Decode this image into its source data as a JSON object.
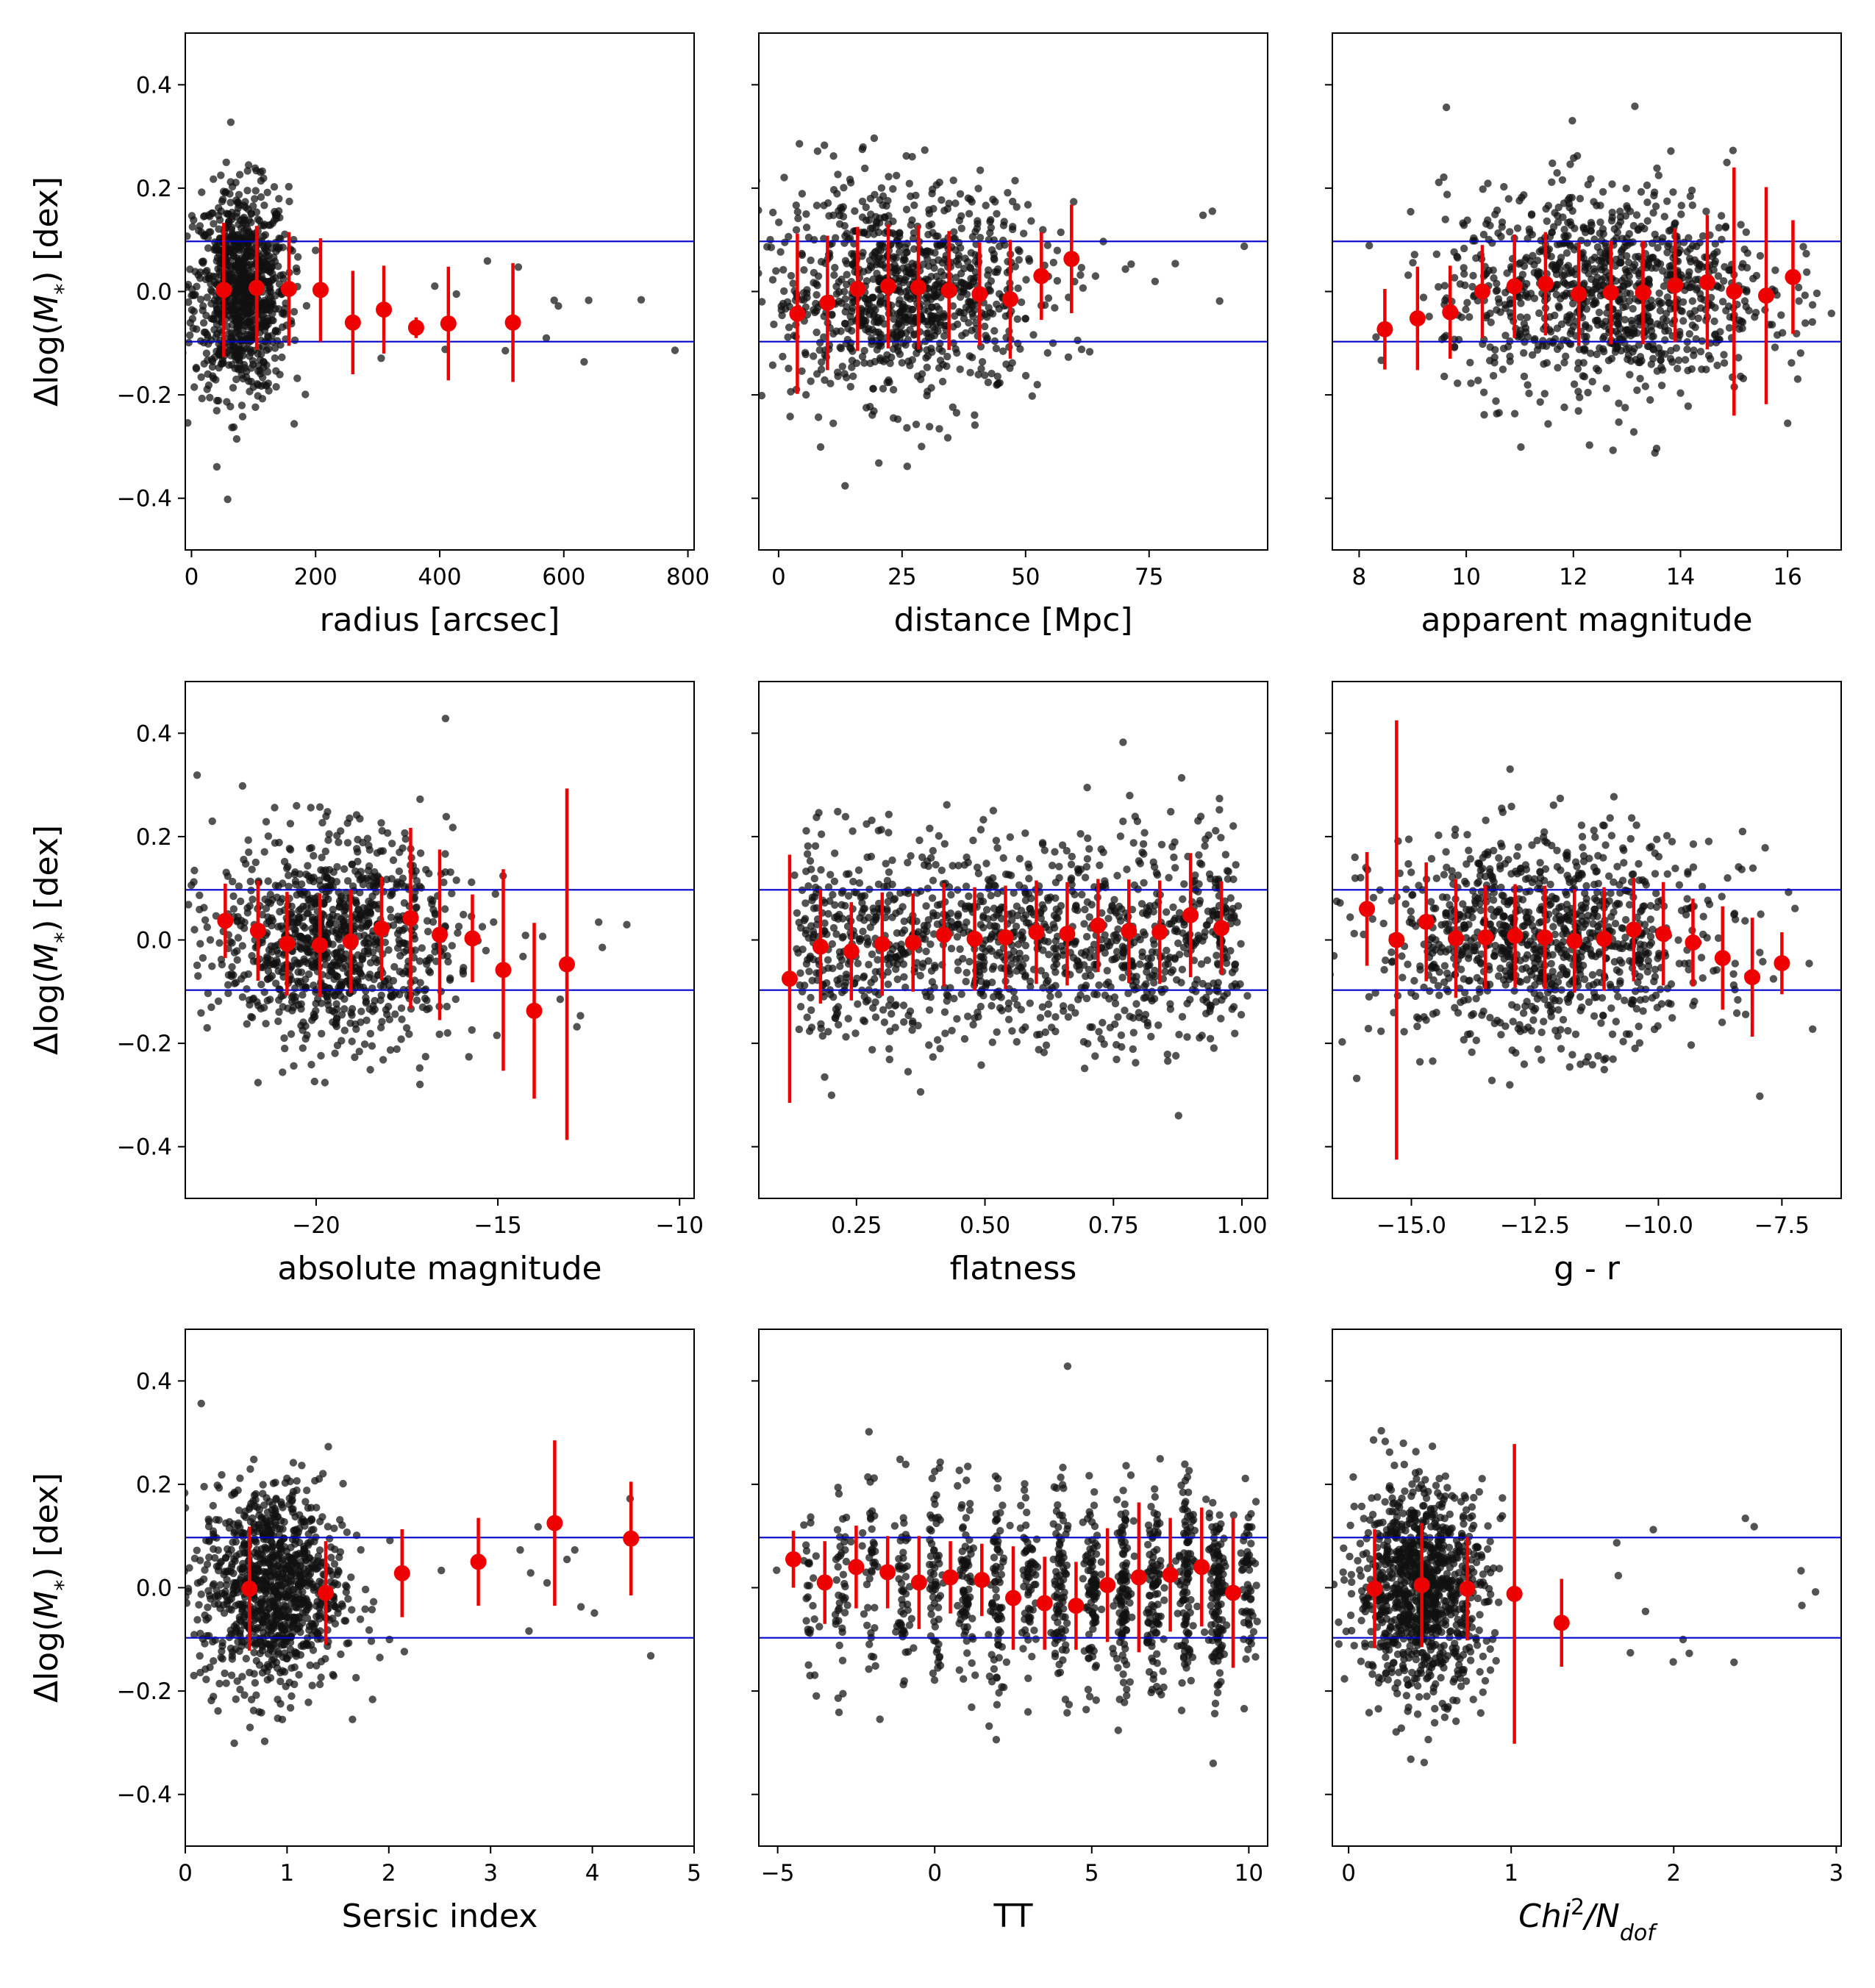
{
  "figure": {
    "shared_ylabel": "Δlog(M*) [dex]",
    "yticks": [
      "0.4",
      "0.2",
      "0.0",
      "−0.2",
      "−0.4"
    ]
  },
  "chart_data": [
    {
      "type": "scatter",
      "xlabel": "radius [arcsec]",
      "ylabel": "Δlog(M*) [dex]",
      "xlim": [
        -10,
        810
      ],
      "ylim": [
        -0.5,
        0.5
      ],
      "xticks": [
        0,
        200,
        400,
        600,
        800
      ],
      "xtick_labels": [
        "0",
        "200",
        "400",
        "600",
        "800"
      ],
      "cloud": {
        "center": 80,
        "spread": 38,
        "n": 900,
        "ysd": 0.1,
        "tail_max": 790
      },
      "hlines": [
        0.097,
        -0.097
      ],
      "binned": {
        "x": [
          52,
          105,
          157,
          208,
          260,
          310,
          362,
          414,
          518
        ],
        "y": [
          0.003,
          0.007,
          0.005,
          0.003,
          -0.06,
          -0.035,
          -0.07,
          -0.062,
          -0.06
        ],
        "err": [
          0.13,
          0.12,
          0.11,
          0.1,
          0.1,
          0.085,
          0.02,
          0.11,
          0.115
        ]
      }
    },
    {
      "type": "scatter",
      "xlabel": "distance [Mpc]",
      "ylabel": "Δlog(M*) [dex]",
      "xlim": [
        -4,
        99
      ],
      "ylim": [
        -0.5,
        0.5
      ],
      "xticks": [
        0,
        25,
        50,
        75
      ],
      "xtick_labels": [
        "0",
        "25",
        "50",
        "75"
      ],
      "cloud": {
        "center": 25,
        "spread": 14,
        "n": 1000,
        "ysd": 0.1,
        "tail_max": 95
      },
      "hlines": [
        0.097,
        -0.097
      ],
      "binned": {
        "x": [
          3.8,
          9.9,
          16,
          22.2,
          28.3,
          34.5,
          40.7,
          46.9,
          53.2,
          59.3
        ],
        "y": [
          -0.043,
          -0.022,
          0.005,
          0.01,
          0.008,
          0.002,
          -0.005,
          -0.015,
          0.03,
          0.063
        ],
        "err": [
          0.155,
          0.13,
          0.12,
          0.12,
          0.12,
          0.115,
          0.1,
          0.115,
          0.085,
          0.105
        ]
      }
    },
    {
      "type": "scatter",
      "xlabel": "apparent magnitude",
      "ylabel": "Δlog(M*) [dex]",
      "xlim": [
        7.5,
        17
      ],
      "ylim": [
        -0.5,
        0.5
      ],
      "xticks": [
        8,
        10,
        12,
        14,
        16
      ],
      "xtick_labels": [
        "8",
        "10",
        "12",
        "14",
        "16"
      ],
      "cloud": {
        "center": 12.6,
        "spread": 1.5,
        "n": 1000,
        "ysd": 0.1,
        "tail_max": 16.6
      },
      "hlines": [
        0.097,
        -0.097
      ],
      "binned": {
        "x": [
          8.48,
          9.09,
          9.7,
          10.3,
          10.9,
          11.48,
          12.1,
          12.7,
          13.3,
          13.9,
          14.5,
          15.0,
          15.6,
          16.1
        ],
        "y": [
          -0.073,
          -0.052,
          -0.04,
          0.0,
          0.01,
          0.015,
          -0.005,
          -0.002,
          -0.002,
          0.012,
          0.018,
          0.0,
          -0.008,
          0.028
        ],
        "err": [
          0.078,
          0.1,
          0.09,
          0.09,
          0.1,
          0.1,
          0.1,
          0.1,
          0.1,
          0.11,
          0.13,
          0.24,
          0.21,
          0.11
        ]
      }
    },
    {
      "type": "scatter",
      "xlabel": "absolute magnitude",
      "ylabel": "Δlog(M*) [dex]",
      "xlim": [
        -23.6,
        -9.6
      ],
      "ylim": [
        -0.5,
        0.5
      ],
      "xticks": [
        -20,
        -15,
        -10
      ],
      "xtick_labels": [
        "−20",
        "−15",
        "−10"
      ],
      "cloud": {
        "center": -19.5,
        "spread": 1.6,
        "n": 1000,
        "ysd": 0.1,
        "tail_max": -10.3
      },
      "hlines": [
        0.097,
        -0.097
      ],
      "binned": {
        "x": [
          -22.5,
          -21.6,
          -20.8,
          -19.9,
          -19.05,
          -18.2,
          -17.4,
          -16.6,
          -15.7,
          -14.85,
          -14.0,
          -13.1
        ],
        "y": [
          0.037,
          0.018,
          -0.007,
          -0.01,
          -0.003,
          0.022,
          0.042,
          0.01,
          0.003,
          -0.058,
          -0.137,
          -0.047
        ],
        "err": [
          0.072,
          0.097,
          0.1,
          0.1,
          0.1,
          0.1,
          0.175,
          0.165,
          0.085,
          0.195,
          0.17,
          0.34
        ]
      }
    },
    {
      "type": "scatter",
      "xlabel": "flatness",
      "ylabel": "Δlog(M*) [dex]",
      "xlim": [
        0.06,
        1.05
      ],
      "ylim": [
        -0.5,
        0.5
      ],
      "xticks": [
        0.25,
        0.5,
        0.75,
        1.0
      ],
      "xtick_labels": [
        "0.25",
        "0.50",
        "0.75",
        "1.00"
      ],
      "cloud": {
        "center": 0.55,
        "spread": 0.24,
        "n": 1200,
        "ysd": 0.1,
        "tail_max": 1.0,
        "uniform": [
          0.14,
          0.99
        ]
      },
      "hlines": [
        0.097,
        -0.097
      ],
      "binned": {
        "x": [
          0.12,
          0.18,
          0.24,
          0.3,
          0.36,
          0.42,
          0.48,
          0.54,
          0.6,
          0.66,
          0.72,
          0.78,
          0.84,
          0.9,
          0.96
        ],
        "y": [
          -0.075,
          -0.013,
          -0.022,
          -0.008,
          -0.005,
          0.01,
          0.002,
          0.005,
          0.015,
          0.012,
          0.028,
          0.017,
          0.015,
          0.048,
          0.023
        ],
        "err": [
          0.24,
          0.11,
          0.095,
          0.1,
          0.095,
          0.1,
          0.1,
          0.1,
          0.1,
          0.1,
          0.09,
          0.1,
          0.1,
          0.12,
          0.09
        ]
      }
    },
    {
      "type": "scatter",
      "xlabel": "g - r",
      "ylabel": "Δlog(M*) [dex]",
      "xlim": [
        -16.6,
        -6.3
      ],
      "ylim": [
        -0.5,
        0.5
      ],
      "xticks": [
        -15,
        -12.5,
        -10,
        -7.5
      ],
      "xtick_labels": [
        "−15.0",
        "−12.5",
        "−10.0",
        "−7.5"
      ],
      "cloud": {
        "center": -12.3,
        "spread": 1.7,
        "n": 1000,
        "ysd": 0.1,
        "tail_max": -6.6
      },
      "hlines": [
        0.097,
        -0.097
      ],
      "binned": {
        "x": [
          -15.9,
          -15.3,
          -14.7,
          -14.1,
          -13.5,
          -12.9,
          -12.3,
          -11.7,
          -11.1,
          -10.5,
          -9.9,
          -9.3,
          -8.7,
          -8.1,
          -7.5
        ],
        "y": [
          0.06,
          0.0,
          0.035,
          0.003,
          0.005,
          0.008,
          0.005,
          -0.002,
          0.002,
          0.02,
          0.012,
          -0.005,
          -0.035,
          -0.072,
          -0.045
        ],
        "err": [
          0.11,
          0.425,
          0.115,
          0.115,
          0.1,
          0.1,
          0.1,
          0.1,
          0.1,
          0.1,
          0.1,
          0.085,
          0.1,
          0.115,
          0.06
        ]
      }
    },
    {
      "type": "scatter",
      "xlabel": "Sersic index",
      "ylabel": "Δlog(M*) [dex]",
      "xlim": [
        0,
        5
      ],
      "ylim": [
        -0.5,
        0.5
      ],
      "xticks": [
        0,
        1,
        2,
        3,
        4,
        5
      ],
      "xtick_labels": [
        "0",
        "1",
        "2",
        "3",
        "4",
        "5"
      ],
      "cloud": {
        "center": 0.85,
        "spread": 0.35,
        "n": 1000,
        "ysd": 0.1,
        "tail_max": 4.6
      },
      "hlines": [
        0.097,
        -0.097
      ],
      "binned": {
        "x": [
          0.63,
          1.38,
          2.13,
          2.88,
          3.63,
          4.38
        ],
        "y": [
          -0.002,
          -0.01,
          0.028,
          0.05,
          0.125,
          0.095
        ],
        "err": [
          0.12,
          0.1,
          0.085,
          0.085,
          0.16,
          0.11
        ]
      }
    },
    {
      "type": "scatter",
      "xlabel": "TT",
      "ylabel": "Δlog(M*) [dex]",
      "xlim": [
        -5.6,
        10.6
      ],
      "ylim": [
        -0.5,
        0.5
      ],
      "xticks": [
        -5,
        0,
        5,
        10
      ],
      "xtick_labels": [
        "−5",
        "0",
        "5",
        "10"
      ],
      "cloud": {
        "center": 5,
        "spread": 4,
        "n": 1100,
        "ysd": 0.1,
        "tail_max": 10,
        "discrete": true
      },
      "hlines": [
        0.097,
        -0.097
      ],
      "binned": {
        "x": [
          -4.5,
          -3.5,
          -2.5,
          -1.5,
          -0.5,
          0.5,
          1.5,
          2.5,
          3.5,
          4.5,
          5.5,
          6.5,
          7.5,
          8.5,
          9.5
        ],
        "y": [
          0.055,
          0.01,
          0.04,
          0.03,
          0.01,
          0.02,
          0.015,
          -0.02,
          -0.03,
          -0.035,
          0.005,
          0.02,
          0.025,
          0.04,
          -0.01
        ],
        "err": [
          0.055,
          0.08,
          0.08,
          0.07,
          0.09,
          0.07,
          0.07,
          0.1,
          0.09,
          0.085,
          0.11,
          0.145,
          0.11,
          0.115,
          0.145
        ]
      }
    },
    {
      "type": "scatter",
      "xlabel": "Chi²/N_dof",
      "ylabel": "Δlog(M*) [dex]",
      "xlim": [
        -0.1,
        3.03
      ],
      "ylim": [
        -0.5,
        0.5
      ],
      "xticks": [
        0,
        1,
        2,
        3
      ],
      "xtick_labels": [
        "0",
        "1",
        "2",
        "3"
      ],
      "cloud": {
        "center": 0.45,
        "spread": 0.2,
        "n": 1000,
        "ysd": 0.1,
        "tail_max": 2.9
      },
      "hlines": [
        0.097,
        -0.097
      ],
      "binned": {
        "x": [
          0.16,
          0.45,
          0.73,
          1.02,
          1.31
        ],
        "y": [
          -0.002,
          0.005,
          -0.002,
          -0.012,
          -0.068
        ],
        "err": [
          0.115,
          0.12,
          0.1,
          0.29,
          0.085
        ]
      }
    }
  ],
  "colors": {
    "scatter": "#111111",
    "binned": "#ee0000",
    "hline": "#0000cc",
    "axes": "#000000"
  }
}
